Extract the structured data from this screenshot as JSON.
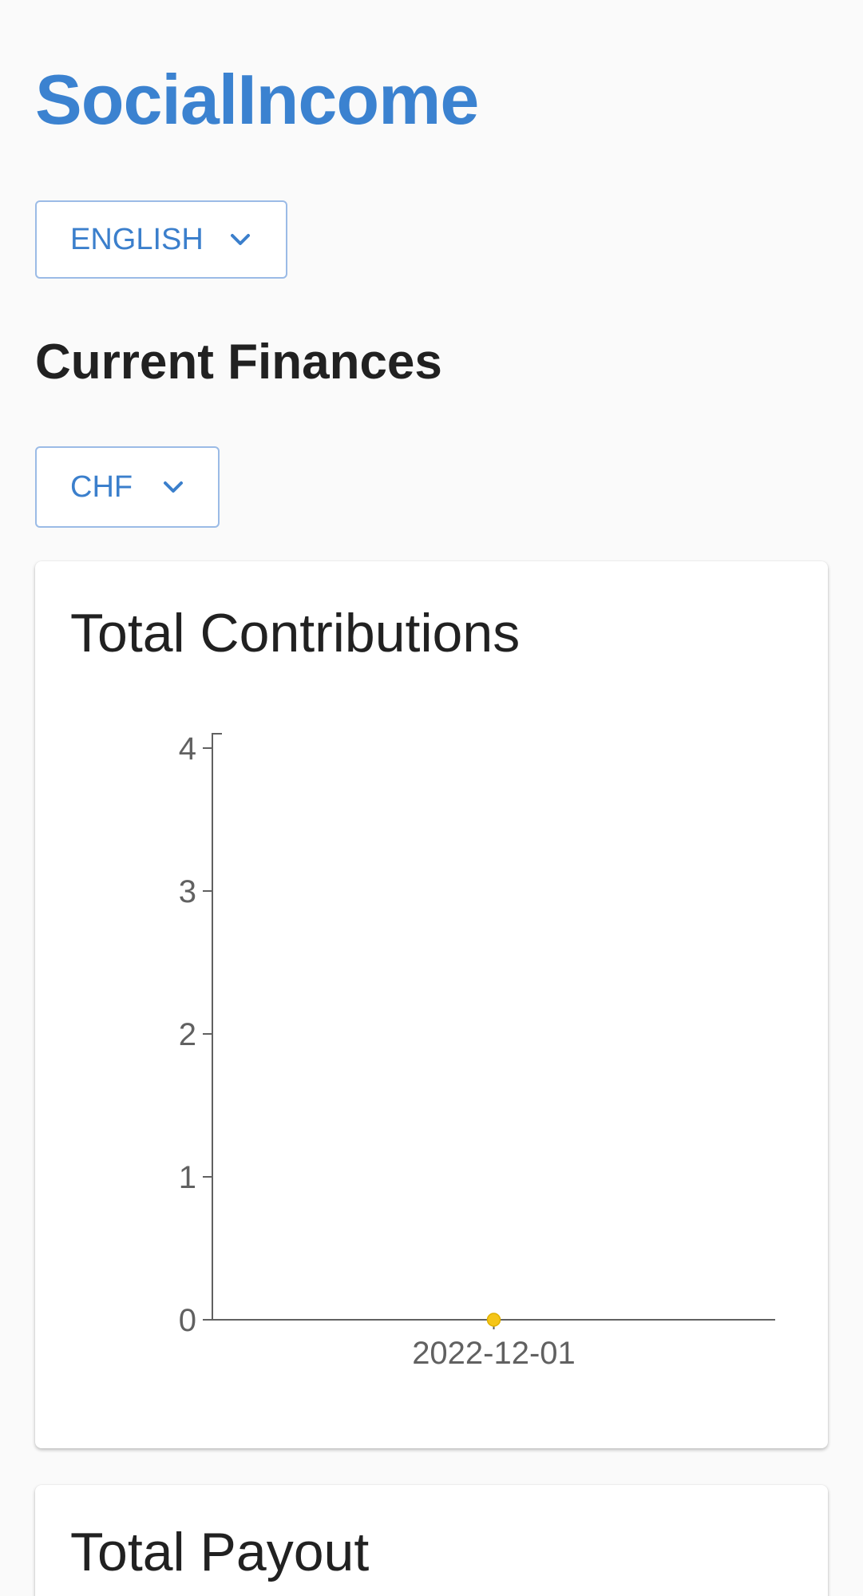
{
  "app": {
    "title": "SocialIncome"
  },
  "language_select": {
    "value": "ENGLISH",
    "icon": "chevron-down-icon"
  },
  "finances": {
    "title": "Current Finances"
  },
  "currency_select": {
    "value": "CHF",
    "icon": "chevron-down-icon"
  },
  "contributions_card": {
    "title": "Total Contributions"
  },
  "payout_card": {
    "title": "Total Payout"
  },
  "colors": {
    "brand": "#3b82d0",
    "point": "#f5c518",
    "axis": "#616161"
  },
  "chart_data": {
    "type": "line",
    "title": "Total Contributions",
    "categories": [
      "2022-12-01"
    ],
    "series": [
      {
        "values": [
          0
        ]
      }
    ],
    "y_ticks": [
      0,
      1,
      2,
      3,
      4
    ],
    "ylim": [
      0,
      4
    ],
    "grid": false,
    "legend": "none"
  }
}
